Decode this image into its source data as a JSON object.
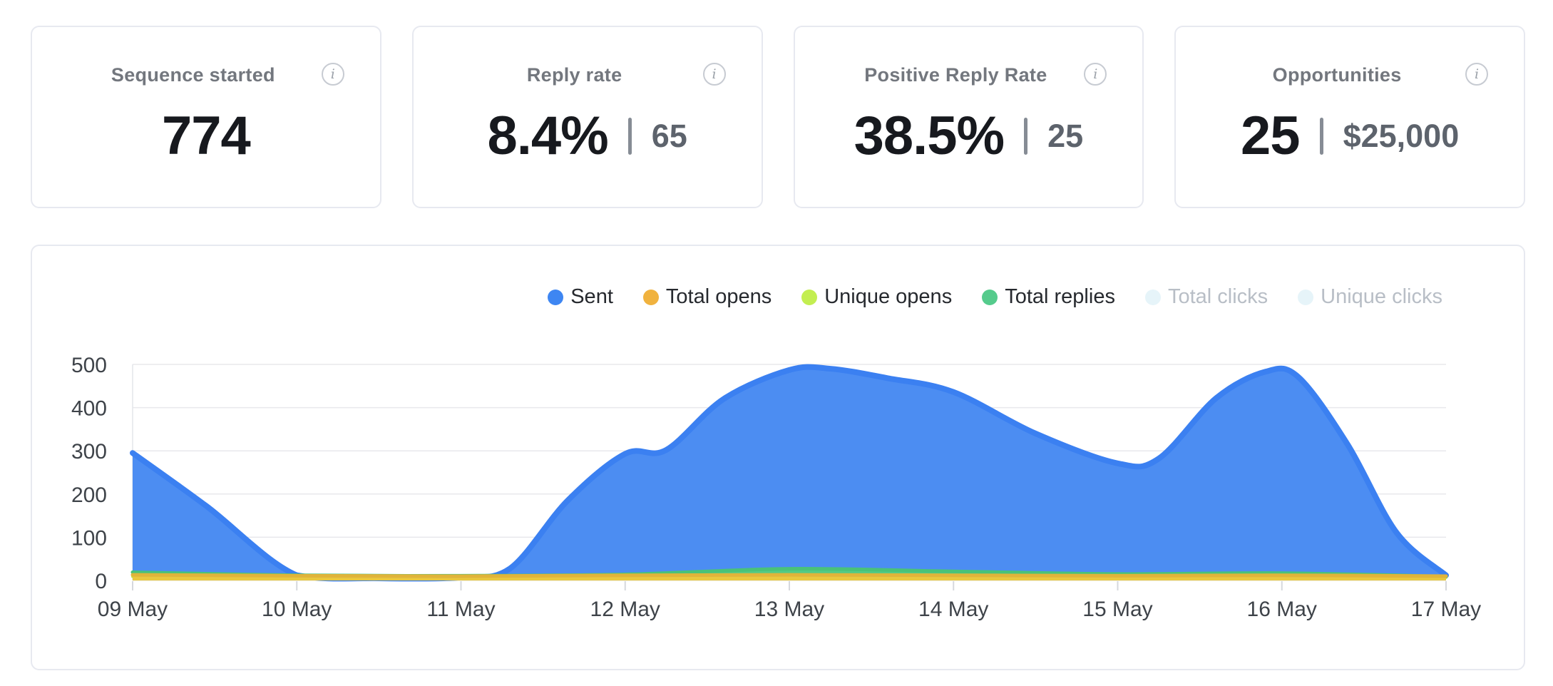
{
  "kpi_cards": [
    {
      "title": "Sequence started",
      "value": "774",
      "secondary": null
    },
    {
      "title": "Reply rate",
      "value": "8.4%",
      "secondary": "65"
    },
    {
      "title": "Positive Reply Rate",
      "value": "38.5%",
      "secondary": "25"
    },
    {
      "title": "Opportunities",
      "value": "25",
      "secondary": "$25,000"
    }
  ],
  "icons": {
    "info_glyph": "i"
  },
  "colors": {
    "card_border": "#E7E9F0",
    "title_gray": "#73777E",
    "value_dark": "#17191E",
    "secondary_gray": "#5D636C",
    "axis_label": "#3E4349",
    "gridline": "#E8E8EC",
    "tick": "#D6D8DD",
    "legend_text": "#26292E",
    "legend_text_disabled": "#B8BEC6"
  },
  "chart_data": {
    "type": "area",
    "title": "",
    "xlabel": "",
    "ylabel": "",
    "x_ticks": [
      "09 May",
      "10 May",
      "11 May",
      "12 May",
      "13 May",
      "14 May",
      "15 May",
      "16 May",
      "17 May"
    ],
    "y_ticks": [
      0,
      100,
      200,
      300,
      400,
      500
    ],
    "ylim": [
      0,
      500
    ],
    "grid": true,
    "smoothing": "spline",
    "legend_position": "top-right",
    "legend": [
      {
        "label": "Sent",
        "dot_color": "#3E86F2",
        "enabled": true
      },
      {
        "label": "Total opens",
        "dot_color": "#F0B23E",
        "enabled": true
      },
      {
        "label": "Unique opens",
        "dot_color": "#C3EE51",
        "enabled": true
      },
      {
        "label": "Total replies",
        "dot_color": "#55CB8C",
        "enabled": true
      },
      {
        "label": "Total clicks",
        "dot_color": "#E6F4F9",
        "enabled": false
      },
      {
        "label": "Unique clicks",
        "dot_color": "#E6F4F9",
        "enabled": false
      }
    ],
    "series": [
      {
        "name": "Sent",
        "stroke": "#3B80F1",
        "fill": "#4C8DF2",
        "enabled": true,
        "z": 1,
        "values": [
          295,
          12,
          7,
          293,
          487,
          436,
          271,
          483,
          12
        ],
        "shape_points": [
          [
            0,
            295
          ],
          [
            0.45,
            172
          ],
          [
            1,
            12
          ],
          [
            1.5,
            5
          ],
          [
            2,
            7
          ],
          [
            2.3,
            28
          ],
          [
            2.65,
            185
          ],
          [
            3,
            293
          ],
          [
            3.25,
            302
          ],
          [
            3.6,
            420
          ],
          [
            4,
            487
          ],
          [
            4.25,
            490
          ],
          [
            4.6,
            468
          ],
          [
            5,
            436
          ],
          [
            5.5,
            340
          ],
          [
            6,
            271
          ],
          [
            6.25,
            282
          ],
          [
            6.6,
            422
          ],
          [
            6.9,
            483
          ],
          [
            7.1,
            471
          ],
          [
            7.4,
            315
          ],
          [
            7.7,
            110
          ],
          [
            8,
            12
          ]
        ]
      },
      {
        "name": "Unique opens",
        "stroke": "#BCE446",
        "fill": "#C6EC52",
        "enabled": true,
        "z": 2,
        "values": [
          9,
          8,
          7,
          8,
          9,
          8,
          8,
          8,
          7
        ]
      },
      {
        "name": "Total replies",
        "stroke": "#49C279",
        "fill": "#53CA85",
        "enabled": true,
        "z": 3,
        "values": [
          19,
          12,
          11,
          14,
          27,
          21,
          15,
          17,
          9
        ]
      },
      {
        "name": "Total opens",
        "stroke": "#E0B43A",
        "fill": "#E9C83F",
        "enabled": true,
        "z": 4,
        "values": [
          13,
          11,
          10,
          12,
          13,
          12,
          11,
          12,
          10
        ]
      },
      {
        "name": "Total clicks",
        "enabled": false,
        "values": null
      },
      {
        "name": "Unique clicks",
        "enabled": false,
        "values": null
      }
    ]
  }
}
